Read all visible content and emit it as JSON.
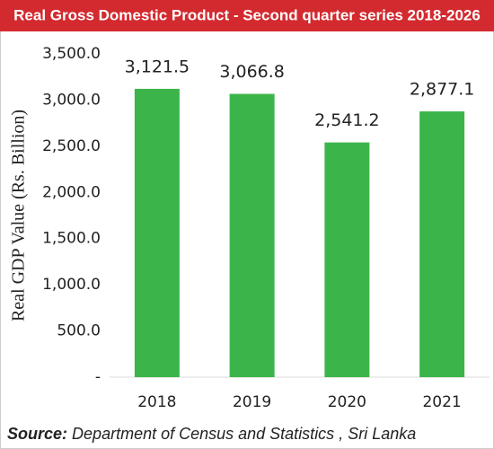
{
  "chart_data": {
    "type": "bar",
    "title": "Real Gross Domestic Product - Second quarter series 2018-2026",
    "y_label": "Real GDP Value (Rs. Billion)",
    "categories": [
      "2018",
      "2019",
      "2020",
      "2021"
    ],
    "values": [
      3121.5,
      3066.8,
      2541.2,
      2877.1
    ],
    "value_labels": [
      "3,121.5",
      "3,066.8",
      "2,541.2",
      "2,877.1"
    ],
    "color": "#3bb54a",
    "ylim": [
      0,
      3500
    ],
    "yticks": [
      {
        "value": 0,
        "label": "-"
      },
      {
        "value": 500,
        "label": "500.0"
      },
      {
        "value": 1000,
        "label": "1,000.0"
      },
      {
        "value": 1500,
        "label": "1,500.0"
      },
      {
        "value": 2000,
        "label": "2,000.0"
      },
      {
        "value": 2500,
        "label": "2,500.0"
      },
      {
        "value": 3000,
        "label": "3,000.0"
      },
      {
        "value": 3500,
        "label": "3,500.0"
      }
    ],
    "grid": false,
    "source_label": "Source:",
    "source": "Department of Census and Statistics , Sri Lanka"
  }
}
